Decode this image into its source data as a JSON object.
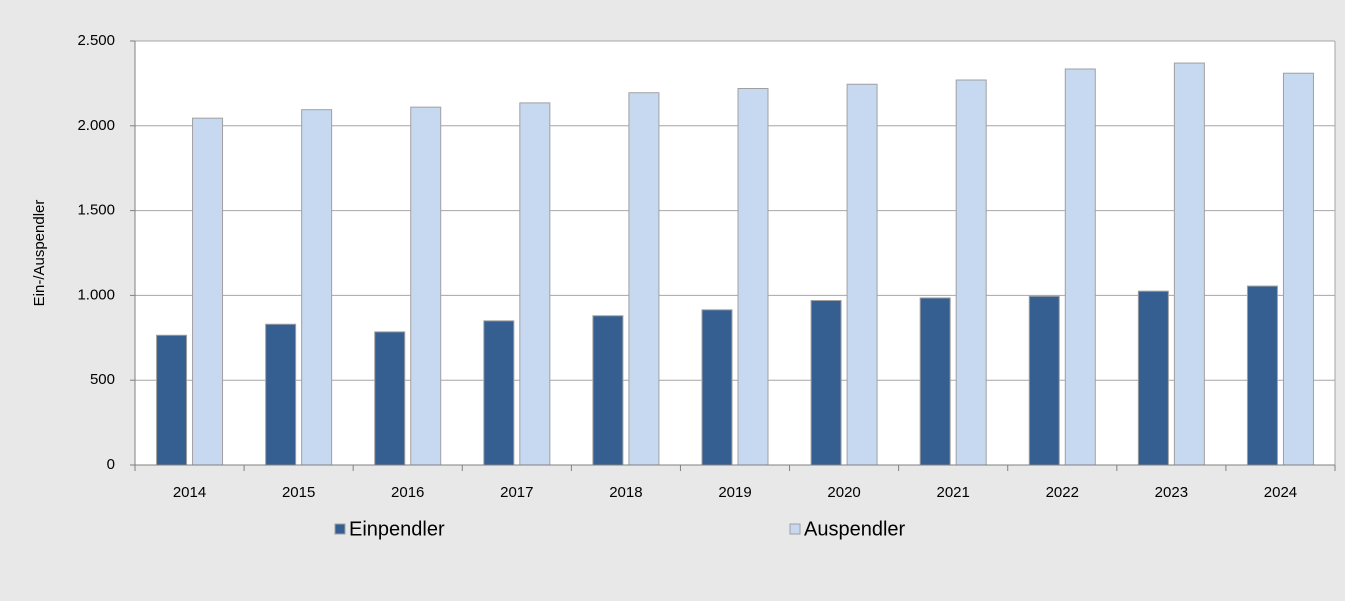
{
  "chart_data": {
    "type": "bar",
    "y_label": "Ein-/Auspendler",
    "categories": [
      "2014",
      "2015",
      "2016",
      "2017",
      "2018",
      "2019",
      "2020",
      "2021",
      "2022",
      "2023",
      "2024"
    ],
    "series": [
      {
        "name": "Einpendler",
        "color": "#365f91",
        "values": [
          765,
          830,
          785,
          850,
          880,
          915,
          970,
          985,
          995,
          1025,
          1055
        ]
      },
      {
        "name": "Auspendler",
        "color": "#c6d9f1",
        "values": [
          2045,
          2095,
          2110,
          2135,
          2195,
          2220,
          2245,
          2270,
          2335,
          2370,
          2310
        ]
      }
    ],
    "ylim": [
      0,
      2500
    ],
    "yticks": [
      0,
      500,
      {
        "value": 1000,
        "label": "1.000"
      },
      {
        "value": 1500,
        "label": "1.500"
      },
      {
        "value": 2000,
        "label": "2.000"
      },
      {
        "value": 2500,
        "label": "2.500"
      }
    ],
    "grid": true,
    "legend": "bottom"
  }
}
